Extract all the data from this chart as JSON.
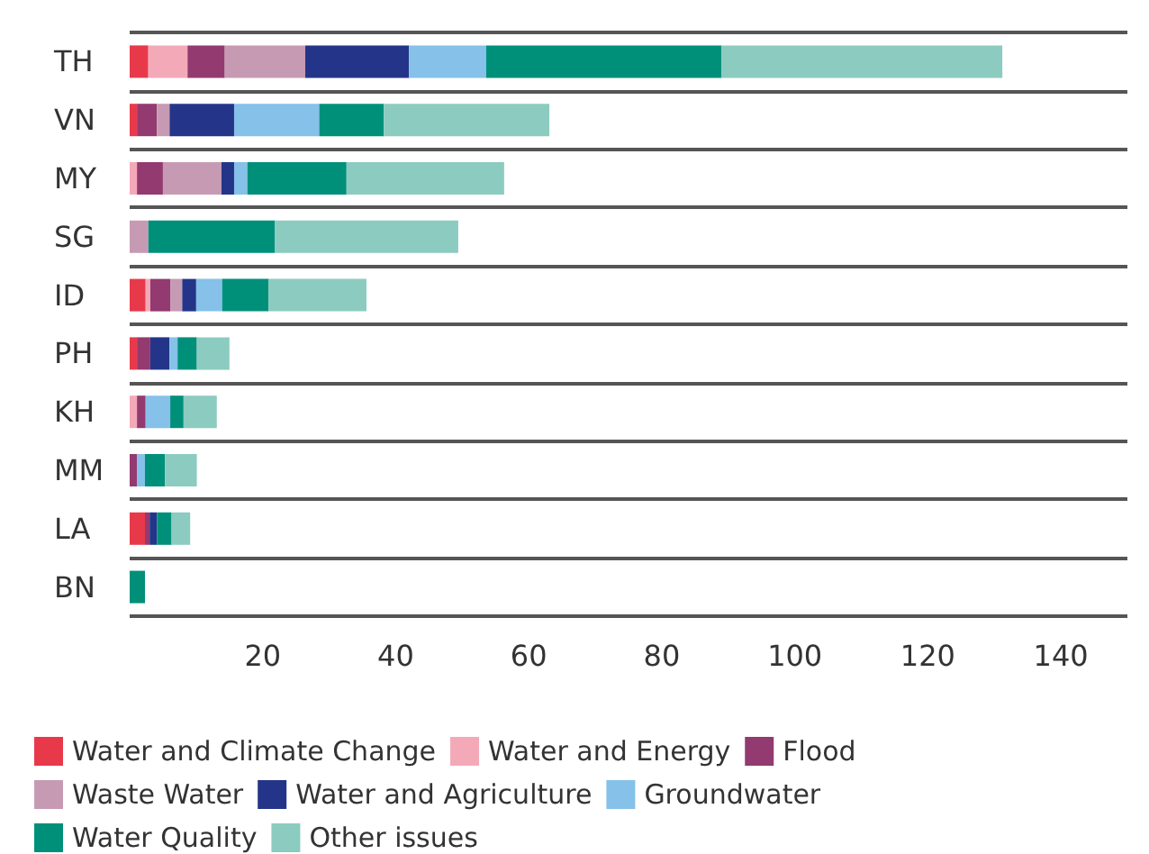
{
  "chart_data": {
    "type": "bar",
    "orientation": "horizontal",
    "stacked": true,
    "categories": [
      "TH",
      "VN",
      "MY",
      "SG",
      "ID",
      "PH",
      "KH",
      "MM",
      "LA",
      "BN"
    ],
    "series": [
      {
        "name": "Water and Climate Change",
        "color": "#e8394a",
        "values": [
          2.8,
          1.1,
          null,
          null,
          2.4,
          1.1,
          null,
          null,
          2.3,
          null
        ]
      },
      {
        "name": "Water and Energy",
        "color": "#f4a9b8",
        "values": [
          5.9,
          null,
          1.1,
          null,
          0.7,
          null,
          1.1,
          null,
          null,
          null
        ]
      },
      {
        "name": "Flood",
        "color": "#933a70",
        "values": [
          5.6,
          3.0,
          3.9,
          null,
          3.0,
          2.0,
          1.3,
          1.1,
          0.7,
          null
        ]
      },
      {
        "name": "Waste Water",
        "color": "#c79ab3",
        "values": [
          12.1,
          1.9,
          8.8,
          2.8,
          1.8,
          null,
          null,
          null,
          null,
          null
        ]
      },
      {
        "name": "Water and Agriculture",
        "color": "#243589",
        "values": [
          15.6,
          9.7,
          1.9,
          null,
          2.1,
          2.9,
          null,
          null,
          1.1,
          null
        ]
      },
      {
        "name": "Groundwater",
        "color": "#85c1e9",
        "values": [
          11.6,
          12.8,
          2.0,
          null,
          3.9,
          1.2,
          3.7,
          1.2,
          null,
          null
        ]
      },
      {
        "name": "Water Quality",
        "color": "#00907a",
        "values": [
          35.4,
          9.7,
          14.9,
          19.0,
          7.0,
          2.9,
          2.0,
          3.0,
          2.2,
          2.3
        ]
      },
      {
        "name": "Other issues",
        "color": "#8ccbc0",
        "values": [
          42.2,
          24.9,
          23.7,
          27.6,
          14.7,
          4.9,
          5.0,
          4.8,
          2.8,
          null
        ]
      }
    ],
    "xlim": [
      0,
      150
    ],
    "xticks": [
      20,
      40,
      60,
      80,
      100,
      120,
      140
    ],
    "grid": "y",
    "legend": "bottom"
  }
}
